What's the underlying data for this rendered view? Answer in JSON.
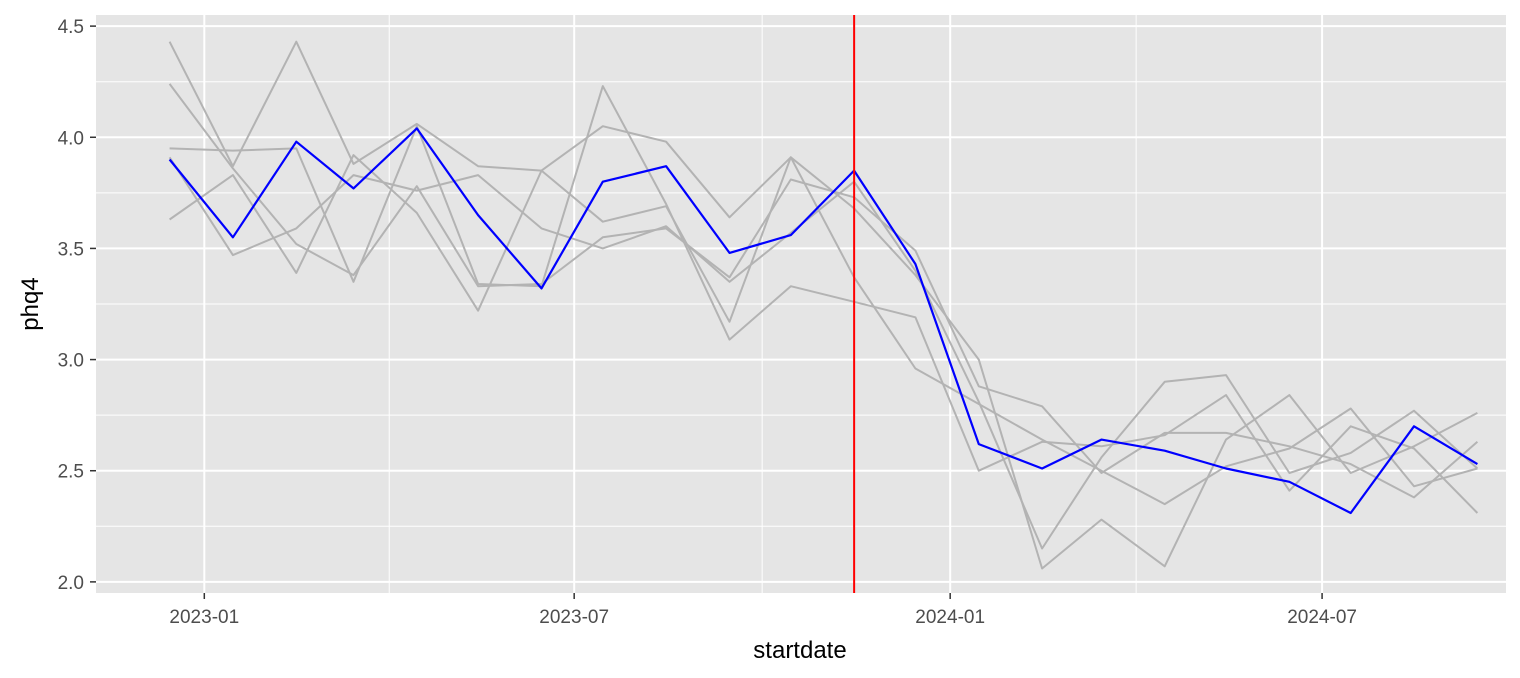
{
  "chart_data": {
    "type": "line",
    "xlabel": "startdate",
    "ylabel": "phq4",
    "x_tick_labels": [
      "2023-01",
      "2023-07",
      "2024-01",
      "2024-07"
    ],
    "x_tick_dates": [
      "2023-01-01",
      "2023-07-01",
      "2024-01-01",
      "2024-07-01"
    ],
    "y_tick_labels": [
      "2.0",
      "2.5",
      "3.0",
      "3.5",
      "4.0",
      "4.5"
    ],
    "y_tick_values": [
      2.0,
      2.5,
      3.0,
      3.5,
      4.0,
      4.5
    ],
    "ylim": [
      1.95,
      4.55
    ],
    "xlim": [
      "2022-11-09",
      "2024-09-29"
    ],
    "grid": true,
    "vline": {
      "date": "2023-11-15",
      "color": "#ff0000"
    },
    "colors": {
      "background": "#e5e5e5",
      "grid": "#ffffff",
      "gray_series": "#b3b3b3",
      "highlight": "#0000ff",
      "vline": "#ff0000"
    },
    "series": [
      {
        "name": "gray-1",
        "color": "#b3b3b3",
        "x": [
          "2022-12-15",
          "2023-01-15",
          "2023-02-15",
          "2023-03-15",
          "2023-04-15",
          "2023-05-15",
          "2023-06-15",
          "2023-07-15",
          "2023-08-15",
          "2023-09-15",
          "2023-10-15",
          "2023-11-15",
          "2023-12-15",
          "2024-01-15",
          "2024-02-15",
          "2024-03-15",
          "2024-04-15",
          "2024-05-15",
          "2024-06-15",
          "2024-07-15",
          "2024-08-15",
          "2024-09-15"
        ],
        "values": [
          4.43,
          3.87,
          4.43,
          3.88,
          4.06,
          3.87,
          3.85,
          3.62,
          3.69,
          3.17,
          3.91,
          3.68,
          3.38,
          3.0,
          2.06,
          2.28,
          2.07,
          2.64,
          2.84,
          2.49,
          2.61,
          2.76
        ]
      },
      {
        "name": "gray-2",
        "color": "#b3b3b3",
        "x": [
          "2022-12-15",
          "2023-01-15",
          "2023-02-15",
          "2023-03-15",
          "2023-04-15",
          "2023-05-15",
          "2023-06-15",
          "2023-07-15",
          "2023-08-15",
          "2023-09-15",
          "2023-10-15",
          "2023-11-15",
          "2023-12-15",
          "2024-01-15",
          "2024-02-15",
          "2024-03-15",
          "2024-04-15",
          "2024-05-15",
          "2024-06-15",
          "2024-07-15",
          "2024-08-15",
          "2024-09-15"
        ],
        "values": [
          4.24,
          3.86,
          3.52,
          3.38,
          3.78,
          3.33,
          3.34,
          3.55,
          3.59,
          3.37,
          3.81,
          3.73,
          3.49,
          2.88,
          2.79,
          2.49,
          2.67,
          2.67,
          2.61,
          2.53,
          2.38,
          2.63
        ]
      },
      {
        "name": "gray-3",
        "color": "#b3b3b3",
        "x": [
          "2022-12-15",
          "2023-01-15",
          "2023-02-15",
          "2023-03-15",
          "2023-04-15",
          "2023-05-15",
          "2023-06-15",
          "2023-07-15",
          "2023-08-15",
          "2023-09-15",
          "2023-10-15",
          "2023-11-15",
          "2023-12-15",
          "2024-01-15",
          "2024-02-15",
          "2024-03-15",
          "2024-04-15",
          "2024-05-15",
          "2024-06-15",
          "2024-07-15",
          "2024-08-15",
          "2024-09-15"
        ],
        "values": [
          3.95,
          3.94,
          3.95,
          3.35,
          4.05,
          3.34,
          3.33,
          4.23,
          3.7,
          3.09,
          3.33,
          3.26,
          3.19,
          2.5,
          2.63,
          2.61,
          2.66,
          2.84,
          2.41,
          2.7,
          2.6,
          2.31
        ]
      },
      {
        "name": "gray-4",
        "color": "#b3b3b3",
        "x": [
          "2022-12-15",
          "2023-01-15",
          "2023-02-15",
          "2023-03-15",
          "2023-04-15",
          "2023-05-15",
          "2023-06-15",
          "2023-07-15",
          "2023-08-15",
          "2023-09-15",
          "2023-10-15",
          "2023-11-15",
          "2023-12-15",
          "2024-01-15",
          "2024-02-15",
          "2024-03-15",
          "2024-04-15",
          "2024-05-15",
          "2024-06-15",
          "2024-07-15",
          "2024-08-15",
          "2024-09-15"
        ],
        "values": [
          3.63,
          3.83,
          3.39,
          3.92,
          3.66,
          3.22,
          3.85,
          4.05,
          3.98,
          3.64,
          3.91,
          3.37,
          2.96,
          2.8,
          2.64,
          2.5,
          2.35,
          2.52,
          2.6,
          2.78,
          2.43,
          2.51
        ]
      },
      {
        "name": "gray-5",
        "color": "#b3b3b3",
        "x": [
          "2022-12-15",
          "2023-01-15",
          "2023-02-15",
          "2023-03-15",
          "2023-04-15",
          "2023-05-15",
          "2023-06-15",
          "2023-07-15",
          "2023-08-15",
          "2023-09-15",
          "2023-10-15",
          "2023-11-15",
          "2023-12-15",
          "2024-01-15",
          "2024-02-15",
          "2024-03-15",
          "2024-04-15",
          "2024-05-15",
          "2024-06-15",
          "2024-07-15",
          "2024-08-15",
          "2024-09-15"
        ],
        "values": [
          3.91,
          3.47,
          3.59,
          3.83,
          3.76,
          3.83,
          3.59,
          3.5,
          3.6,
          3.35,
          3.57,
          3.8,
          3.4,
          2.81,
          2.15,
          2.56,
          2.9,
          2.93,
          2.49,
          2.58,
          2.77,
          2.51
        ]
      },
      {
        "name": "blue-mean",
        "color": "#0000ff",
        "x": [
          "2022-12-15",
          "2023-01-15",
          "2023-02-15",
          "2023-03-15",
          "2023-04-15",
          "2023-05-15",
          "2023-06-15",
          "2023-07-15",
          "2023-08-15",
          "2023-09-15",
          "2023-10-15",
          "2023-11-15",
          "2023-12-15",
          "2024-01-15",
          "2024-02-15",
          "2024-03-15",
          "2024-04-15",
          "2024-05-15",
          "2024-06-15",
          "2024-07-15",
          "2024-08-15",
          "2024-09-15"
        ],
        "values": [
          3.9,
          3.55,
          3.98,
          3.77,
          4.04,
          3.65,
          3.32,
          3.8,
          3.87,
          3.48,
          3.56,
          3.85,
          3.43,
          2.62,
          2.51,
          2.64,
          2.59,
          2.51,
          2.45,
          2.31,
          2.7,
          2.53
        ]
      }
    ]
  }
}
